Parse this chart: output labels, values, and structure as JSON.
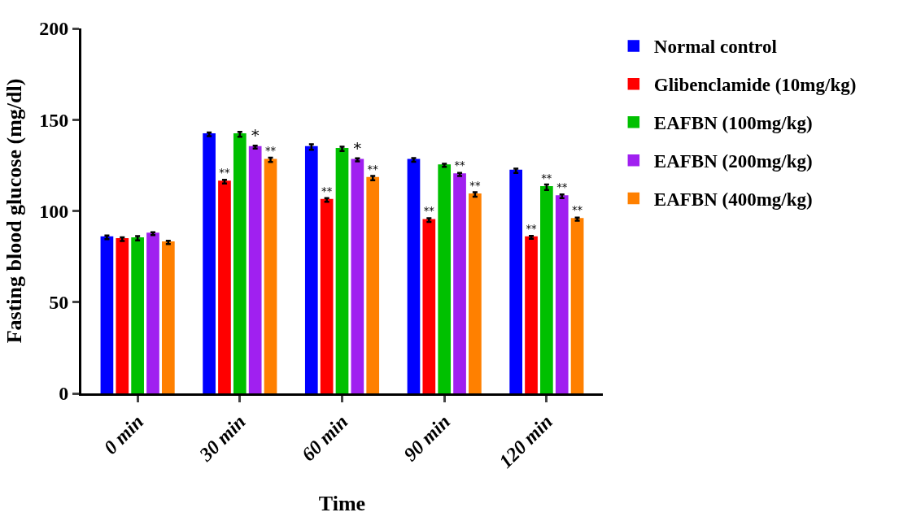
{
  "chart_data": {
    "type": "bar",
    "xlabel": "Time",
    "ylabel": "Fasting blood glucose (mg/dl)",
    "categories": [
      "0 min",
      "30 min",
      "60 min",
      "90 min",
      "120 min"
    ],
    "ylim": [
      0,
      200
    ],
    "yticks": [
      0,
      50,
      100,
      150,
      200
    ],
    "legend": "top right",
    "series": [
      {
        "name": "Normal control",
        "color": "#0000ff",
        "values": [
          85.5,
          142,
          135,
          128,
          122
        ],
        "errors": [
          1,
          1,
          1.5,
          1,
          1.2
        ]
      },
      {
        "name": "Glibenclamide (10mg/kg)",
        "color": "#ff0000",
        "values": [
          84.5,
          116,
          106,
          95,
          85.5
        ],
        "errors": [
          1,
          1,
          1,
          1,
          0.8
        ],
        "value_labels": [
          null,
          "**",
          "**",
          "**",
          "**"
        ]
      },
      {
        "name": "EAFBN (100mg/kg)",
        "color": "#00c000",
        "values": [
          85,
          142,
          134,
          125,
          113
        ],
        "errors": [
          1.2,
          1.3,
          1.2,
          0.8,
          1.5
        ],
        "value_labels": [
          null,
          null,
          null,
          null,
          "**"
        ]
      },
      {
        "name": "EAFBN (200mg/kg)",
        "color": "#a020f0",
        "values": [
          87.5,
          135,
          128,
          120,
          108
        ],
        "errors": [
          0.8,
          0.8,
          0.8,
          0.8,
          1
        ],
        "value_labels": [
          null,
          "*",
          "*",
          "**",
          "**"
        ]
      },
      {
        "name": "EAFBN (400mg/kg)",
        "color": "#ff8000",
        "values": [
          82.7,
          128,
          118,
          109,
          95.5
        ],
        "errors": [
          0.9,
          1.2,
          1.2,
          1.2,
          0.8
        ],
        "value_labels": [
          null,
          "**",
          "**",
          "**",
          "**"
        ]
      }
    ]
  }
}
